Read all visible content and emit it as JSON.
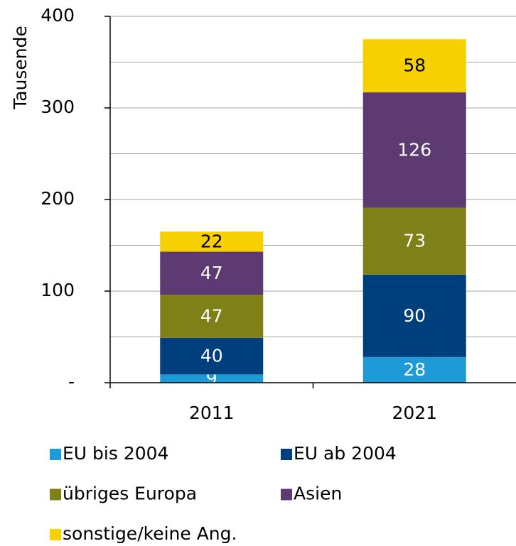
{
  "chart_data": {
    "type": "stacked_bar",
    "ylabel": "Tausende",
    "categories": [
      "2011",
      "2021"
    ],
    "series": [
      {
        "name": "EU bis 2004",
        "color": "#1e9ad6",
        "values": [
          9,
          28
        ]
      },
      {
        "name": "EU ab 2004",
        "color": "#003f7d",
        "values": [
          40,
          90
        ]
      },
      {
        "name": "übriges Europa",
        "color": "#808019",
        "values": [
          47,
          73
        ]
      },
      {
        "name": "Asien",
        "color": "#5e3a73",
        "values": [
          47,
          126
        ]
      },
      {
        "name": "sonstige/keine Ang.",
        "color": "#f7d000",
        "values": [
          22,
          58
        ]
      }
    ],
    "ylim": [
      0,
      400
    ],
    "yticks": [
      {
        "value": 0,
        "label": "-"
      },
      100,
      200,
      300,
      400
    ],
    "minor_yticks": [
      50,
      150,
      250,
      350
    ],
    "grid": true,
    "legend": "bottom"
  }
}
